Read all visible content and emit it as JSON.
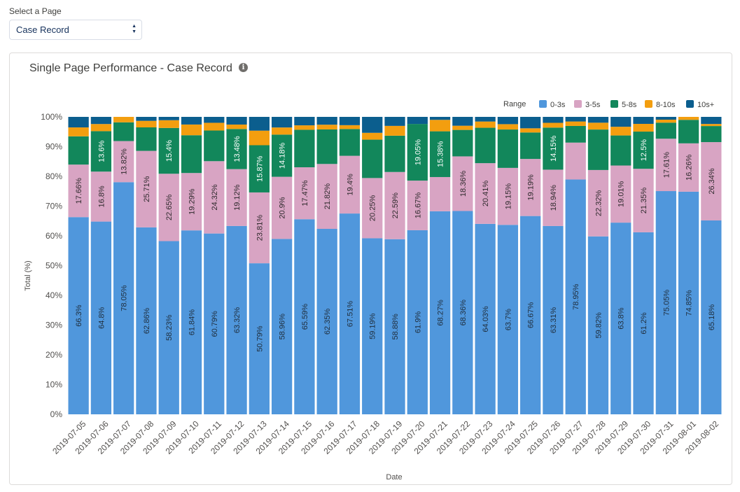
{
  "selector": {
    "label": "Select a Page",
    "value": "Case Record"
  },
  "card": {
    "title": "Single Page Performance - Case Record",
    "info_icon": "info-icon"
  },
  "chart_data": {
    "type": "bar",
    "stacked": true,
    "title": "Single Page Performance - Case Record",
    "xlabel": "Date",
    "ylabel": "Total (%)",
    "ylim": [
      0,
      100
    ],
    "yticks": [
      "0%",
      "10%",
      "20%",
      "30%",
      "40%",
      "50%",
      "60%",
      "70%",
      "80%",
      "90%",
      "100%"
    ],
    "legend_title": "Range",
    "legend_position": "top-right",
    "categories": [
      "2019-07-05",
      "2019-07-06",
      "2019-07-07",
      "2019-07-08",
      "2019-07-09",
      "2019-07-10",
      "2019-07-11",
      "2019-07-12",
      "2019-07-13",
      "2019-07-14",
      "2019-07-15",
      "2019-07-16",
      "2019-07-17",
      "2019-07-18",
      "2019-07-19",
      "2019-07-20",
      "2019-07-21",
      "2019-07-22",
      "2019-07-23",
      "2019-07-24",
      "2019-07-25",
      "2019-07-26",
      "2019-07-27",
      "2019-07-28",
      "2019-07-29",
      "2019-07-30",
      "2019-07-31",
      "2019-08-01",
      "2019-08-02"
    ],
    "series": [
      {
        "name": "0-3s",
        "color": "#5097dc",
        "label_color": "#1f2e3d",
        "values": [
          66.3,
          64.8,
          78.05,
          62.86,
          58.23,
          61.84,
          60.79,
          63.32,
          50.79,
          58.96,
          65.59,
          62.35,
          67.51,
          59.19,
          58.88,
          61.9,
          68.27,
          68.36,
          64.03,
          63.7,
          66.67,
          63.31,
          78.95,
          59.82,
          63.8,
          61.2,
          75.05,
          74.85,
          65.18
        ],
        "labels": [
          "66.3%",
          "64.8%",
          "78.05%",
          "62.86%",
          "58.23%",
          "61.84%",
          "60.79%",
          "63.32%",
          "50.79%",
          "58.96%",
          "65.59%",
          "62.35%",
          "67.51%",
          "59.19%",
          "58.88%",
          "61.9%",
          "68.27%",
          "68.36%",
          "64.03%",
          "63.7%",
          "66.67%",
          "63.31%",
          "78.95%",
          "59.82%",
          "63.8%",
          "61.2%",
          "75.05%",
          "74.85%",
          "65.18%"
        ]
      },
      {
        "name": "3-5s",
        "color": "#d8a4c3",
        "label_color": "#2f2a2d",
        "values": [
          17.66,
          16.8,
          13.82,
          25.71,
          22.65,
          19.29,
          24.32,
          19.12,
          23.81,
          20.9,
          17.47,
          21.82,
          19.4,
          20.25,
          22.59,
          16.67,
          11.5,
          18.36,
          20.41,
          19.15,
          19.19,
          18.94,
          12.4,
          22.32,
          19.01,
          21.35,
          17.61,
          16.26,
          26.34
        ],
        "labels": [
          "17.66%",
          "16.8%",
          "13.82%",
          "25.71%",
          "22.65%",
          "19.29%",
          "24.32%",
          "19.12%",
          "23.81%",
          "20.9%",
          "17.47%",
          "21.82%",
          "19.4%",
          "20.25%",
          "22.59%",
          "16.67%",
          "",
          "18.36%",
          "20.41%",
          "19.15%",
          "19.19%",
          "18.94%",
          "",
          "22.32%",
          "19.01%",
          "21.35%",
          "17.61%",
          "16.26%",
          "26.34%"
        ]
      },
      {
        "name": "5-8s",
        "color": "#12875b",
        "label_color": "#ffffff",
        "values": [
          9.5,
          13.6,
          6.3,
          7.9,
          15.4,
          12.7,
          10.3,
          13.48,
          15.87,
          14.18,
          12.6,
          11.6,
          9.0,
          12.9,
          12.2,
          19.05,
          15.38,
          8.9,
          11.9,
          12.9,
          8.9,
          14.15,
          5.6,
          13.6,
          10.0,
          12.5,
          5.4,
          7.9,
          5.4
        ],
        "labels": [
          "",
          "13.6%",
          "",
          "",
          "15.4%",
          "",
          "",
          "13.48%",
          "15.87%",
          "14.18%",
          "",
          "",
          "",
          "",
          "",
          "19.05%",
          "15.38%",
          "",
          "",
          "",
          "",
          "14.15%",
          "",
          "",
          "",
          "12.5%",
          "",
          "",
          ""
        ]
      },
      {
        "name": "8-10s",
        "color": "#f39e0f",
        "label_color": "#ffffff",
        "values": [
          3.0,
          2.4,
          1.83,
          2.2,
          2.6,
          3.6,
          2.6,
          1.5,
          4.9,
          2.4,
          1.5,
          1.6,
          1.3,
          2.3,
          3.3,
          0,
          3.85,
          1.4,
          2.1,
          1.8,
          1.4,
          1.6,
          1.5,
          2.3,
          2.9,
          2.6,
          1.0,
          1.0,
          0.7
        ],
        "labels": []
      },
      {
        "name": "10s+",
        "color": "#0b5e8e",
        "label_color": "#ffffff",
        "values": [
          3.54,
          2.4,
          0,
          1.33,
          1.12,
          2.57,
          1.99,
          2.58,
          4.63,
          3.56,
          2.84,
          2.63,
          2.79,
          5.36,
          3.03,
          2.38,
          1.0,
          2.98,
          1.56,
          2.45,
          3.84,
          2.0,
          1.55,
          1.96,
          3.29,
          2.35,
          0.94,
          0,
          2.38
        ],
        "labels": []
      }
    ]
  }
}
